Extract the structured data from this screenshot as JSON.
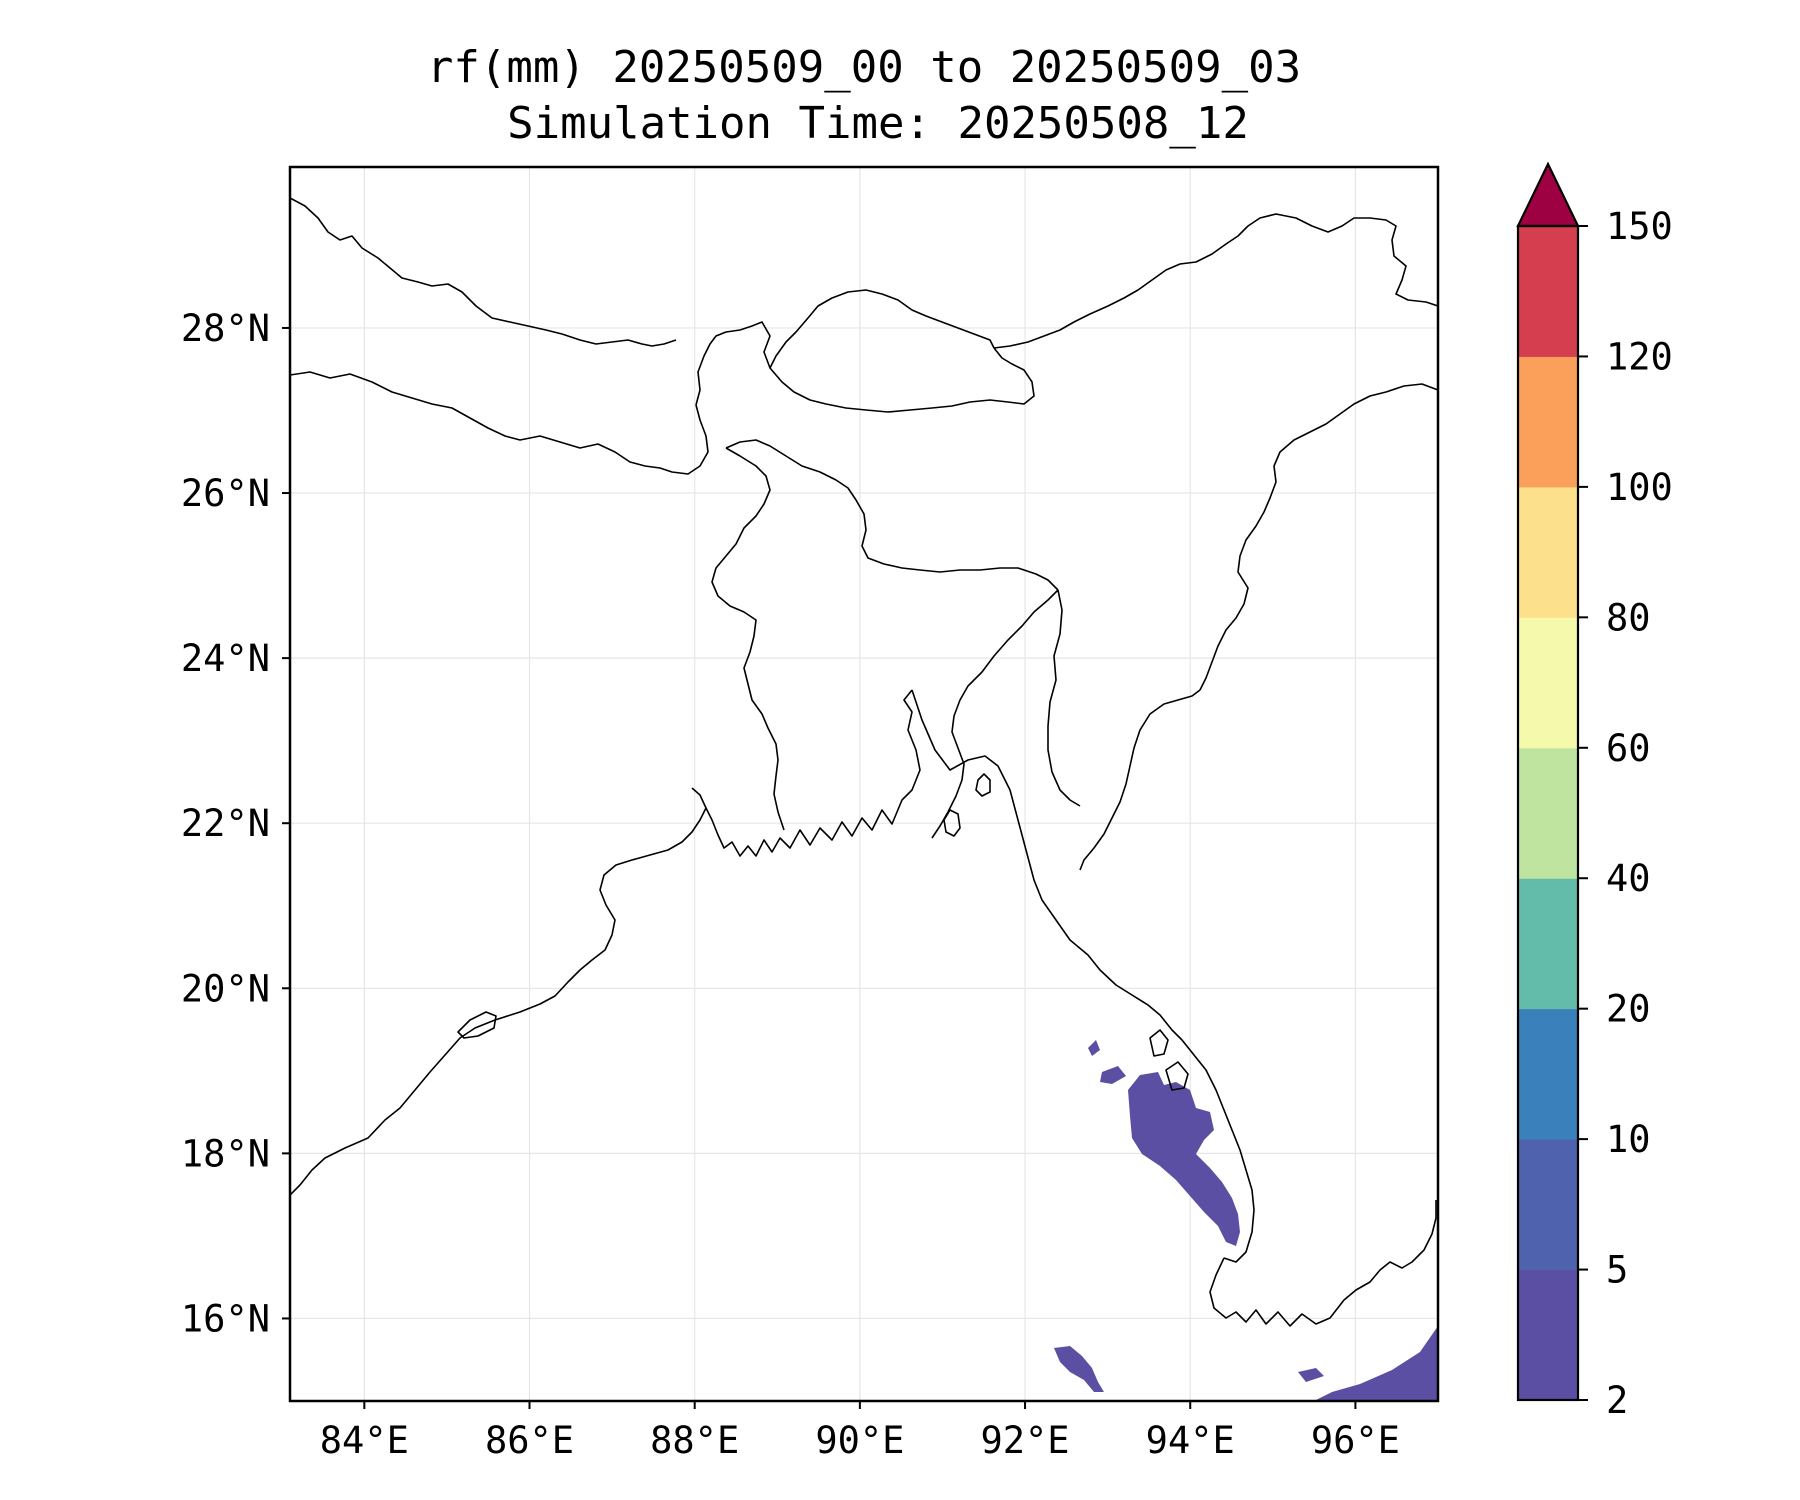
{
  "figure": {
    "title_line1": "rf(mm) 20250509_00 to 20250509_03",
    "title_line2": "Simulation Time: 20250508_12"
  },
  "chart_data": {
    "type": "heatmap",
    "variable": "rf(mm)",
    "xlim": [
      83.1,
      97.0
    ],
    "ylim": [
      15.0,
      29.95
    ],
    "x_ticks": [
      84,
      86,
      88,
      90,
      92,
      94,
      96
    ],
    "x_tick_labels": [
      "84°E",
      "86°E",
      "88°E",
      "90°E",
      "92°E",
      "94°E",
      "96°E"
    ],
    "y_ticks": [
      16,
      18,
      20,
      22,
      24,
      26,
      28
    ],
    "y_tick_labels": [
      "16°N",
      "18°N",
      "20°N",
      "22°N",
      "24°N",
      "26°N",
      "28°N"
    ],
    "grid": true,
    "colorbar": {
      "levels": [
        2,
        5,
        10,
        20,
        40,
        60,
        80,
        100,
        120,
        150
      ],
      "labels": [
        "2",
        "5",
        "10",
        "20",
        "40",
        "60",
        "80",
        "100",
        "120",
        "150"
      ],
      "colors": [
        "#5a4fa2",
        "#4e62ad",
        "#3a80bb",
        "#63bca9",
        "#bfe4a0",
        "#f4f9ab",
        "#fde08c",
        "#fba05a",
        "#d53e4f"
      ],
      "extend_color": "#9e0142",
      "extend": "max"
    },
    "rain_areas": [
      {
        "range": "2-5",
        "lon": [
          93.1,
          94.4
        ],
        "lat": [
          16.9,
          18.9
        ]
      },
      {
        "range": "2-5",
        "lon": [
          92.4,
          93.0
        ],
        "lat": [
          15.2,
          15.5
        ]
      },
      {
        "range": "2-5",
        "lon": [
          95.4,
          97.0
        ],
        "lat": [
          15.0,
          15.9
        ]
      }
    ]
  }
}
